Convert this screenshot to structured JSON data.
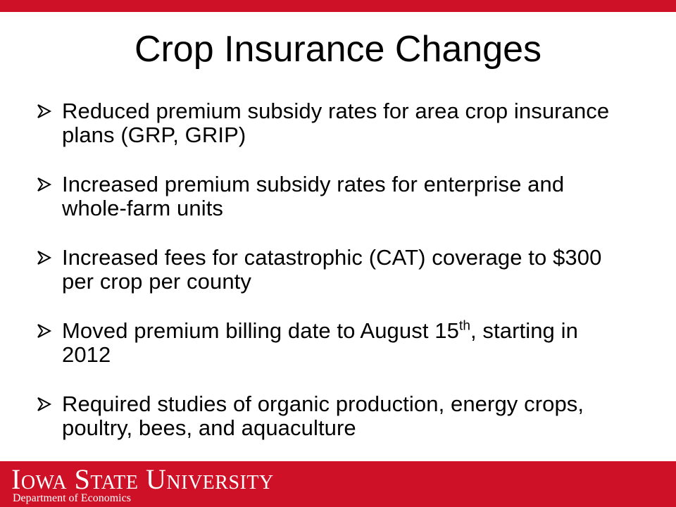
{
  "slide": {
    "title": "Crop Insurance Changes",
    "bullets": [
      {
        "text": "Reduced premium subsidy rates for area crop insurance plans (GRP, GRIP)"
      },
      {
        "text": "Increased premium subsidy rates for enterprise and whole-farm units"
      },
      {
        "text": "Increased fees for catastrophic (CAT) coverage to $300 per crop per county"
      },
      {
        "text_before": "Moved premium billing date to August 15",
        "superscript": "th",
        "text_after": ", starting in 2012"
      },
      {
        "text": "Required studies of organic production, energy crops, poultry, bees, and aquaculture"
      }
    ]
  },
  "footer": {
    "university": "Iowa State University",
    "department": "Department of Economics"
  },
  "colors": {
    "brand_red": "#ce1126",
    "text": "#000000",
    "footer_text": "#ffffff"
  },
  "icons": {
    "bullet": "arrowhead-bullet-icon"
  }
}
